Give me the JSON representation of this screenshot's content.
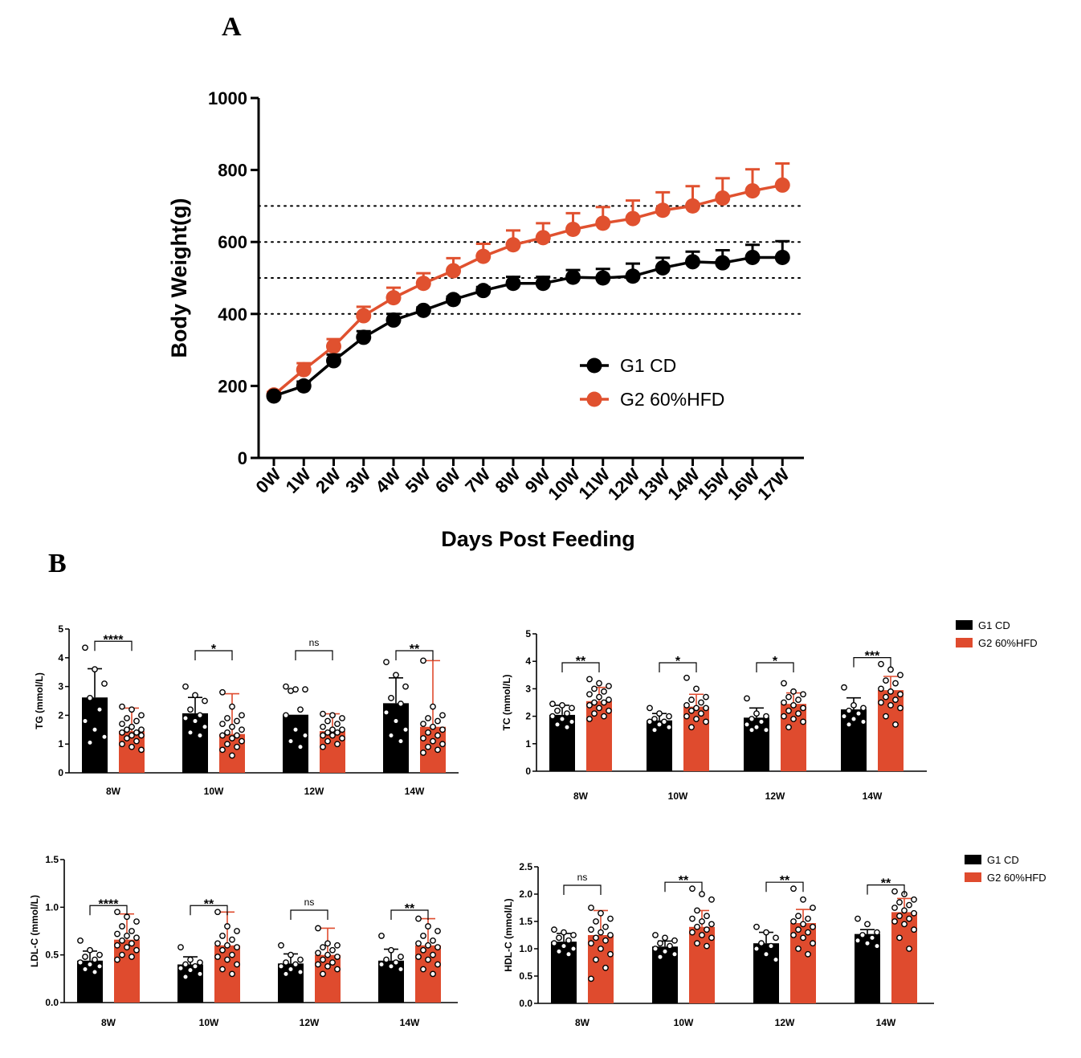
{
  "figure": {
    "panel_a_label": "A",
    "panel_b_label": "B"
  },
  "colors": {
    "cd": "#000000",
    "hfd_line": "#E0512F",
    "hfd_bar": "#DF4B2E"
  },
  "chart_data": [
    {
      "id": "body-weight",
      "type": "line",
      "title": "",
      "xlabel": "Days Post Feeding",
      "ylabel": "Body Weight(g)",
      "categories": [
        "0W",
        "1W",
        "2W",
        "3W",
        "4W",
        "5W",
        "6W",
        "7W",
        "8W",
        "9W",
        "10W",
        "11W",
        "12W",
        "13W",
        "14W",
        "15W",
        "16W",
        "17W"
      ],
      "ylim": [
        0,
        1000
      ],
      "yticks": [
        0,
        200,
        400,
        600,
        800,
        1000
      ],
      "reference_lines": [
        400,
        500,
        600,
        700
      ],
      "series": [
        {
          "name": "G1 CD",
          "values": [
            172,
            200,
            270,
            335,
            383,
            410,
            440,
            465,
            485,
            485,
            502,
            500,
            505,
            528,
            545,
            542,
            557,
            557
          ],
          "errors": [
            5,
            12,
            17,
            17,
            17,
            8,
            8,
            10,
            18,
            18,
            20,
            25,
            35,
            28,
            28,
            35,
            35,
            45
          ]
        },
        {
          "name": "G2 60%HFD",
          "values": [
            175,
            245,
            310,
            395,
            445,
            485,
            520,
            560,
            592,
            612,
            635,
            652,
            665,
            688,
            700,
            722,
            742,
            758
          ],
          "errors": [
            8,
            18,
            20,
            25,
            28,
            28,
            35,
            35,
            40,
            40,
            45,
            45,
            50,
            50,
            55,
            55,
            60,
            60
          ]
        }
      ]
    },
    {
      "id": "tg",
      "type": "bar",
      "ylabel": "TG (mmol/L)",
      "ylim": [
        0,
        5
      ],
      "yticks": [
        "0",
        "1",
        "2",
        "3",
        "4",
        "5"
      ],
      "categories": [
        "8W",
        "10W",
        "12W",
        "14W"
      ],
      "significance": [
        "****",
        "*",
        "ns",
        "**"
      ],
      "series": [
        {
          "name": "G1 CD",
          "values": [
            2.62,
            2.07,
            2.02,
            2.42
          ],
          "errors": [
            1.0,
            0.55,
            0.0,
            0.88
          ],
          "points": [
            [
              4.35,
              3.6,
              3.1,
              2.6,
              2.2,
              1.8,
              1.5,
              1.25,
              1.05
            ],
            [
              3.0,
              2.7,
              2.5,
              2.2,
              2.0,
              1.9,
              1.8,
              1.6,
              1.4,
              1.3
            ],
            [
              3.0,
              2.9,
              2.9,
              2.85,
              2.2,
              2.0,
              1.5,
              1.3,
              1.1,
              0.9
            ],
            [
              3.85,
              3.4,
              3.0,
              2.6,
              2.4,
              2.1,
              1.8,
              1.5,
              1.3,
              1.1
            ]
          ]
        },
        {
          "name": "G2 60%HFD",
          "values": [
            1.45,
            1.35,
            1.45,
            1.6
          ],
          "errors": [
            0.8,
            1.4,
            0.6,
            2.3
          ],
          "points": [
            [
              2.3,
              2.2,
              2.0,
              1.9,
              1.8,
              1.7,
              1.6,
              1.5,
              1.5,
              1.4,
              1.4,
              1.3,
              1.3,
              1.2,
              1.1,
              1.0,
              0.9,
              0.8
            ],
            [
              2.8,
              2.3,
              2.0,
              1.9,
              1.8,
              1.7,
              1.6,
              1.5,
              1.4,
              1.3,
              1.3,
              1.2,
              1.1,
              1.0,
              0.9,
              0.8,
              0.6
            ],
            [
              2.05,
              2.0,
              1.9,
              1.8,
              1.7,
              1.6,
              1.5,
              1.5,
              1.4,
              1.4,
              1.3,
              1.3,
              1.2,
              1.1,
              1.0,
              0.9
            ],
            [
              3.9,
              2.3,
              2.0,
              1.9,
              1.8,
              1.7,
              1.6,
              1.5,
              1.4,
              1.3,
              1.2,
              1.1,
              1.0,
              0.9,
              0.8,
              0.7
            ]
          ]
        }
      ]
    },
    {
      "id": "tc",
      "type": "bar",
      "ylabel": "TC (mmol/L)",
      "ylim": [
        0,
        5
      ],
      "yticks": [
        "0",
        "1",
        "2",
        "3",
        "4",
        "5"
      ],
      "categories": [
        "8W",
        "10W",
        "12W",
        "14W"
      ],
      "significance": [
        "**",
        "*",
        "*",
        "***"
      ],
      "series": [
        {
          "name": "G1 CD",
          "values": [
            2.05,
            1.85,
            1.95,
            2.25
          ],
          "errors": [
            0.35,
            0.25,
            0.35,
            0.42
          ],
          "points": [
            [
              2.45,
              2.4,
              2.3,
              2.2,
              2.1,
              2.0,
              1.9,
              1.8,
              1.7,
              1.6
            ],
            [
              2.3,
              2.1,
              2.0,
              1.9,
              1.8,
              1.8,
              1.7,
              1.6,
              1.5
            ],
            [
              2.65,
              2.1,
              2.0,
              1.9,
              1.8,
              1.7,
              1.6,
              1.5,
              1.5
            ],
            [
              3.05,
              2.4,
              2.3,
              2.2,
              2.1,
              2.0,
              1.9,
              1.8,
              1.7
            ]
          ]
        },
        {
          "name": "G2 60%HFD",
          "values": [
            2.55,
            2.35,
            2.45,
            2.95
          ],
          "errors": [
            0.5,
            0.45,
            0.4,
            0.5
          ],
          "points": [
            [
              3.35,
              3.2,
              3.1,
              3.0,
              2.9,
              2.8,
              2.7,
              2.6,
              2.5,
              2.5,
              2.4,
              2.3,
              2.2,
              2.1,
              2.0,
              1.9
            ],
            [
              3.4,
              3.0,
              2.7,
              2.6,
              2.5,
              2.4,
              2.3,
              2.3,
              2.2,
              2.1,
              2.0,
              1.9,
              1.8,
              1.6
            ],
            [
              3.2,
              2.9,
              2.8,
              2.7,
              2.6,
              2.5,
              2.4,
              2.3,
              2.2,
              2.1,
              2.0,
              1.9,
              1.8,
              1.6
            ],
            [
              3.9,
              3.7,
              3.5,
              3.3,
              3.2,
              3.0,
              2.9,
              2.8,
              2.7,
              2.6,
              2.5,
              2.4,
              2.3,
              2.0,
              1.7
            ]
          ]
        }
      ]
    },
    {
      "id": "ldl",
      "type": "bar",
      "ylabel": "LDL-C (mmol/L)",
      "ylim": [
        0,
        1.5
      ],
      "yticks": [
        "0.0",
        "0.5",
        "1.0",
        "1.5"
      ],
      "categories": [
        "8W",
        "10W",
        "12W",
        "14W"
      ],
      "significance": [
        "****",
        "**",
        "ns",
        "**"
      ],
      "series": [
        {
          "name": "G1 CD",
          "values": [
            0.44,
            0.4,
            0.41,
            0.44
          ],
          "errors": [
            0.1,
            0.08,
            0.1,
            0.12
          ],
          "points": [
            [
              0.65,
              0.55,
              0.5,
              0.48,
              0.45,
              0.42,
              0.4,
              0.38,
              0.35,
              0.32
            ],
            [
              0.58,
              0.45,
              0.42,
              0.4,
              0.38,
              0.36,
              0.34,
              0.3,
              0.27
            ],
            [
              0.6,
              0.5,
              0.45,
              0.42,
              0.4,
              0.38,
              0.35,
              0.32,
              0.3
            ],
            [
              0.7,
              0.55,
              0.48,
              0.45,
              0.42,
              0.4,
              0.38,
              0.35
            ]
          ]
        },
        {
          "name": "G2 60%HFD",
          "values": [
            0.66,
            0.6,
            0.5,
            0.6
          ],
          "errors": [
            0.27,
            0.35,
            0.28,
            0.28
          ],
          "points": [
            [
              0.95,
              0.9,
              0.85,
              0.8,
              0.75,
              0.72,
              0.7,
              0.68,
              0.65,
              0.62,
              0.6,
              0.58,
              0.55,
              0.5,
              0.48,
              0.45
            ],
            [
              0.95,
              0.8,
              0.75,
              0.7,
              0.66,
              0.62,
              0.6,
              0.58,
              0.55,
              0.5,
              0.48,
              0.45,
              0.4,
              0.35,
              0.3
            ],
            [
              0.78,
              0.62,
              0.6,
              0.58,
              0.55,
              0.52,
              0.5,
              0.48,
              0.45,
              0.42,
              0.4,
              0.38,
              0.35,
              0.3
            ],
            [
              0.88,
              0.8,
              0.75,
              0.7,
              0.65,
              0.62,
              0.6,
              0.58,
              0.55,
              0.5,
              0.48,
              0.45,
              0.4,
              0.35,
              0.3
            ]
          ]
        }
      ]
    },
    {
      "id": "hdl",
      "type": "bar",
      "ylabel": "HDL-C (mmol/L)",
      "ylim": [
        0,
        2.5
      ],
      "yticks": [
        "0.0",
        "0.5",
        "1.0",
        "1.5",
        "2.0",
        "2.5"
      ],
      "categories": [
        "8W",
        "10W",
        "12W",
        "14W"
      ],
      "significance": [
        "ns",
        "**",
        "**",
        "**"
      ],
      "series": [
        {
          "name": "G1 CD",
          "values": [
            1.13,
            1.04,
            1.1,
            1.27
          ],
          "errors": [
            0.15,
            0.1,
            0.2,
            0.08
          ],
          "points": [
            [
              1.35,
              1.3,
              1.25,
              1.2,
              1.15,
              1.1,
              1.05,
              1.0,
              0.95,
              0.9
            ],
            [
              1.25,
              1.2,
              1.15,
              1.1,
              1.05,
              1.0,
              0.95,
              0.9,
              0.85
            ],
            [
              1.4,
              1.3,
              1.2,
              1.1,
              1.05,
              1.0,
              0.9,
              0.8
            ],
            [
              1.55,
              1.45,
              1.3,
              1.25,
              1.2,
              1.15,
              1.1,
              1.05
            ]
          ]
        },
        {
          "name": "G2 60%HFD",
          "values": [
            1.25,
            1.4,
            1.47,
            1.67
          ],
          "errors": [
            0.45,
            0.3,
            0.25,
            0.25
          ],
          "points": [
            [
              1.75,
              1.65,
              1.55,
              1.5,
              1.4,
              1.35,
              1.3,
              1.25,
              1.2,
              1.15,
              1.1,
              1.0,
              0.9,
              0.8,
              0.65,
              0.45
            ],
            [
              2.1,
              2.0,
              1.9,
              1.7,
              1.6,
              1.55,
              1.5,
              1.45,
              1.4,
              1.35,
              1.3,
              1.25,
              1.2,
              1.1,
              1.05
            ],
            [
              2.1,
              1.9,
              1.75,
              1.6,
              1.55,
              1.5,
              1.45,
              1.4,
              1.35,
              1.3,
              1.25,
              1.2,
              1.1,
              1.0,
              0.9
            ],
            [
              2.05,
              2.0,
              1.9,
              1.85,
              1.8,
              1.75,
              1.7,
              1.65,
              1.6,
              1.55,
              1.5,
              1.45,
              1.35,
              1.2,
              1.0
            ]
          ]
        }
      ]
    }
  ],
  "legend_b": {
    "items": [
      "G1 CD",
      "G2 60%HFD"
    ]
  }
}
